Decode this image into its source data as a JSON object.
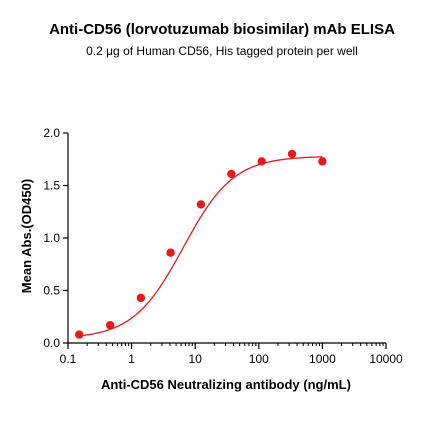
{
  "chart_data": {
    "type": "scatter",
    "title": "Anti-CD56 (lorvotuzumab biosimilar) mAb ELISA",
    "subtitle": "0.2 μg of Human CD56, His tagged protein per well",
    "xlabel": "Anti-CD56 Neutralizing antibody (ng/mL)",
    "ylabel": "Mean Abs.(OD450)",
    "x_scale": "log",
    "xlim": [
      0.1,
      10000
    ],
    "ylim": [
      0.0,
      2.0
    ],
    "x_ticks": [
      0.1,
      1,
      10,
      100,
      1000,
      10000
    ],
    "x_tick_labels": [
      "0.1",
      "1",
      "10",
      "100",
      "1000",
      "10000"
    ],
    "y_ticks": [
      0.0,
      0.5,
      1.0,
      1.5,
      2.0
    ],
    "y_tick_labels": [
      "0.0",
      "0.5",
      "1.0",
      "1.5",
      "2.0"
    ],
    "grid": false,
    "legend": "none",
    "series": [
      {
        "x": [
          0.15,
          0.46,
          1.4,
          4.1,
          12.3,
          37,
          111,
          333,
          1000
        ],
        "y": [
          0.08,
          0.17,
          0.43,
          0.86,
          1.32,
          1.61,
          1.73,
          1.8,
          1.73
        ],
        "color": "#e8191c",
        "fit": {
          "model": "4PL",
          "bottom": 0.04,
          "top": 1.78,
          "ec50": 6.5,
          "hill": 1.1
        }
      }
    ]
  }
}
